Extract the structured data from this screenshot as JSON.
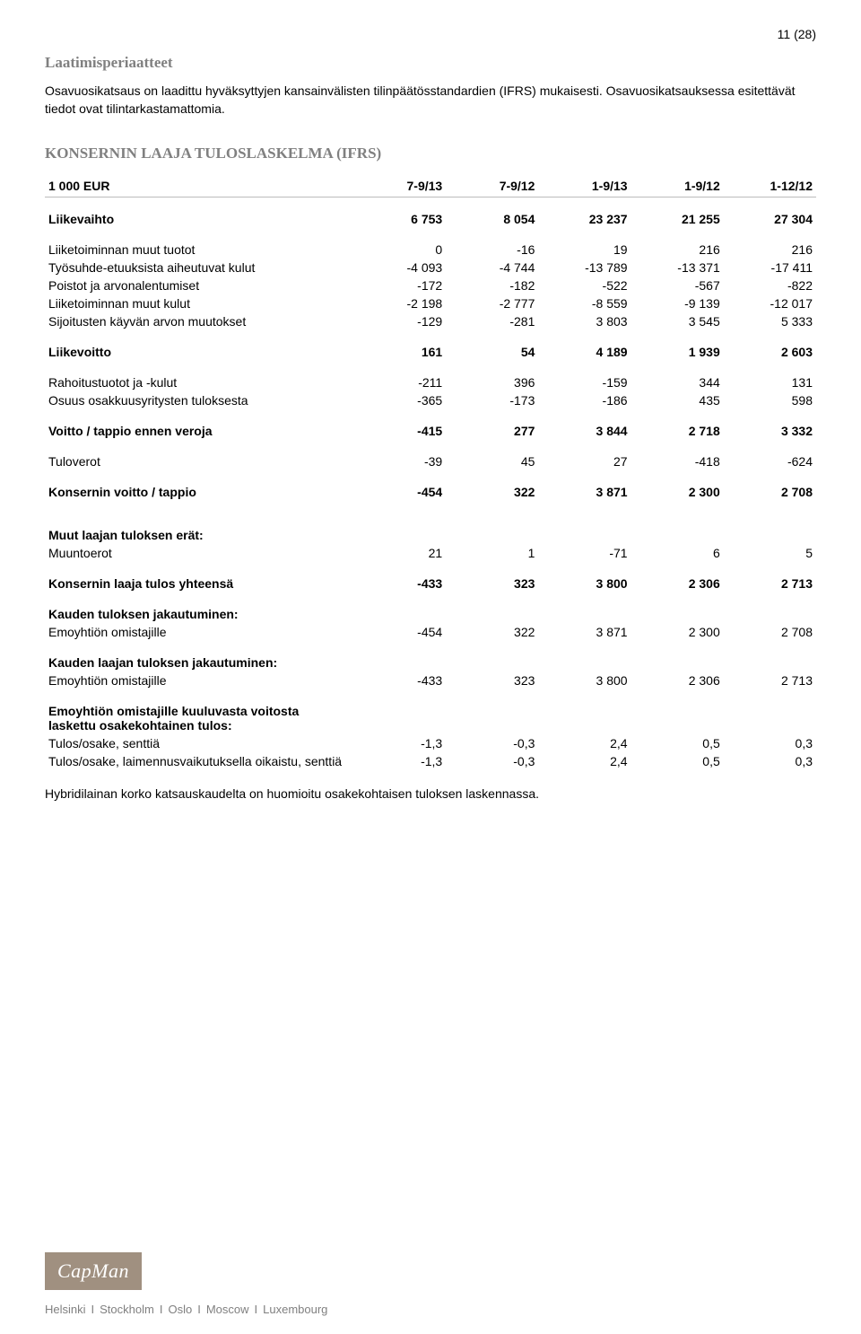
{
  "page_number": "11 (28)",
  "section_title_1": "Laatimisperiaatteet",
  "intro_text": "Osavuosikatsaus on laadittu hyväksyttyjen kansainvälisten tilinpäätösstandardien (IFRS) mukaisesti. Osavuosikatsauksessa esitettävät tiedot ovat tilintarkastamattomia.",
  "section_title_2": "KONSERNIN LAAJA TULOSLASKELMA (IFRS)",
  "columns": [
    "1 000 EUR",
    "7-9/13",
    "7-9/12",
    "1-9/13",
    "1-9/12",
    "1-12/12"
  ],
  "rows": [
    {
      "type": "spacer"
    },
    {
      "type": "bold",
      "label": "Liikevaihto",
      "vals": [
        "6 753",
        "8 054",
        "23 237",
        "21 255",
        "27 304"
      ]
    },
    {
      "type": "spacer"
    },
    {
      "label": "Liiketoiminnan muut tuotot",
      "vals": [
        "0",
        "-16",
        "19",
        "216",
        "216"
      ]
    },
    {
      "label": "Työsuhde-etuuksista aiheutuvat kulut",
      "vals": [
        "-4 093",
        "-4 744",
        "-13 789",
        "-13 371",
        "-17 411"
      ]
    },
    {
      "label": "Poistot ja arvonalentumiset",
      "vals": [
        "-172",
        "-182",
        "-522",
        "-567",
        "-822"
      ]
    },
    {
      "label": "Liiketoiminnan muut kulut",
      "vals": [
        "-2 198",
        "-2 777",
        "-8 559",
        "-9 139",
        "-12 017"
      ]
    },
    {
      "label": "Sijoitusten käyvän arvon muutokset",
      "vals": [
        "-129",
        "-281",
        "3 803",
        "3 545",
        "5 333"
      ]
    },
    {
      "type": "spacer"
    },
    {
      "type": "bold",
      "label": "Liikevoitto",
      "vals": [
        "161",
        "54",
        "4 189",
        "1 939",
        "2 603"
      ]
    },
    {
      "type": "spacer"
    },
    {
      "label": "Rahoitustuotot ja -kulut",
      "vals": [
        "-211",
        "396",
        "-159",
        "344",
        "131"
      ]
    },
    {
      "label": "Osuus osakkuusyritysten tuloksesta",
      "vals": [
        "-365",
        "-173",
        "-186",
        "435",
        "598"
      ]
    },
    {
      "type": "spacer"
    },
    {
      "type": "bold",
      "label": "Voitto / tappio ennen veroja",
      "vals": [
        "-415",
        "277",
        "3 844",
        "2 718",
        "3 332"
      ]
    },
    {
      "type": "spacer"
    },
    {
      "label": "Tuloverot",
      "vals": [
        "-39",
        "45",
        "27",
        "-418",
        "-624"
      ]
    },
    {
      "type": "spacer"
    },
    {
      "type": "bold",
      "label": "Konsernin voitto / tappio",
      "vals": [
        "-454",
        "322",
        "3 871",
        "2 300",
        "2 708"
      ]
    },
    {
      "type": "spacer"
    },
    {
      "type": "spacer"
    },
    {
      "type": "bold",
      "label": "Muut laajan tuloksen erät:",
      "vals": [
        "",
        "",
        "",
        "",
        ""
      ]
    },
    {
      "label": "Muuntoerot",
      "vals": [
        "21",
        "1",
        "-71",
        "6",
        "5"
      ]
    },
    {
      "type": "spacer"
    },
    {
      "type": "bold",
      "label": "Konsernin laaja tulos yhteensä",
      "vals": [
        "-433",
        "323",
        "3 800",
        "2 306",
        "2 713"
      ]
    },
    {
      "type": "spacer"
    },
    {
      "type": "bold",
      "label": "Kauden tuloksen jakautuminen:",
      "vals": [
        "",
        "",
        "",
        "",
        ""
      ]
    },
    {
      "label": "Emoyhtiön omistajille",
      "vals": [
        "-454",
        "322",
        "3 871",
        "2 300",
        "2 708"
      ]
    },
    {
      "type": "spacer"
    },
    {
      "type": "bold",
      "label": "Kauden laajan tuloksen jakautuminen:",
      "vals": [
        "",
        "",
        "",
        "",
        ""
      ]
    },
    {
      "label": "Emoyhtiön omistajille",
      "vals": [
        "-433",
        "323",
        "3 800",
        "2 306",
        "2 713"
      ]
    },
    {
      "type": "spacer"
    },
    {
      "type": "bold",
      "label": "Emoyhtiön omistajille kuuluvasta voitosta laskettu osakekohtainen tulos:",
      "vals": [
        "",
        "",
        "",
        "",
        ""
      ]
    },
    {
      "label": "Tulos/osake, senttiä",
      "vals": [
        "-1,3",
        "-0,3",
        "2,4",
        "0,5",
        "0,3"
      ]
    },
    {
      "label": "Tulos/osake, laimennusvaikutuksella oikaistu, senttiä",
      "vals": [
        "-1,3",
        "-0,3",
        "2,4",
        "0,5",
        "0,3"
      ]
    }
  ],
  "note_text": "Hybridilainan korko katsauskaudelta on huomioitu osakekohtaisen tuloksen laskennassa.",
  "logo_text": "CapMan",
  "locations": [
    "Helsinki",
    "Stockholm",
    "Oslo",
    "Moscow",
    "Luxembourg"
  ]
}
